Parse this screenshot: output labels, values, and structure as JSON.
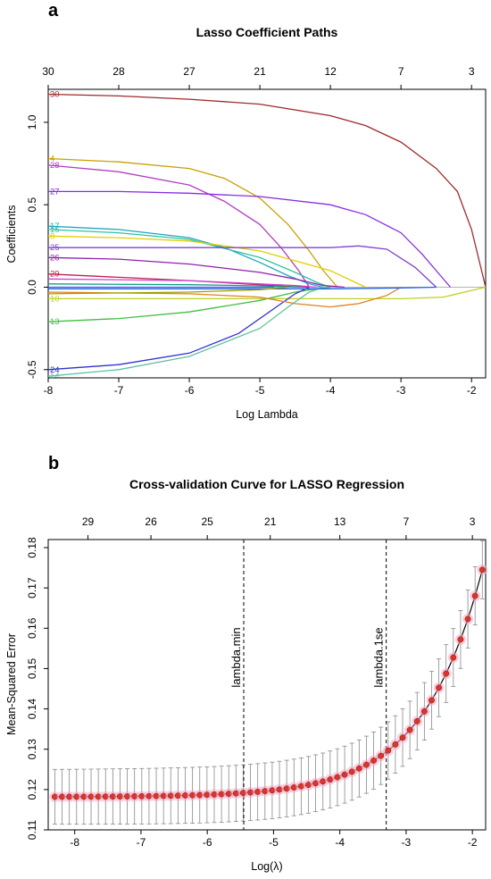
{
  "chart_data": [
    {
      "panel": "a",
      "type": "line",
      "title": "Lasso Coefficient Paths",
      "xlabel": "Log Lambda",
      "ylabel": "Coefficients",
      "xlim": [
        -8,
        -1.8
      ],
      "ylim": [
        -0.55,
        1.2
      ],
      "x_ticks": [
        -8,
        -7,
        -6,
        -5,
        -4,
        -3,
        -2
      ],
      "y_ticks": [
        -0.5,
        0.0,
        0.5,
        1.0
      ],
      "top_ticks": [
        {
          "x": -8,
          "label": "30"
        },
        {
          "x": -7,
          "label": "28"
        },
        {
          "x": -6,
          "label": "27"
        },
        {
          "x": -5,
          "label": "21"
        },
        {
          "x": -4,
          "label": "12"
        },
        {
          "x": -3,
          "label": "7"
        },
        {
          "x": -2,
          "label": "3"
        }
      ],
      "series": [
        {
          "label": "30",
          "color": "#9e2a2b",
          "x": [
            -8,
            -7,
            -6,
            -5,
            -4,
            -3.5,
            -3,
            -2.5,
            -2.2,
            -2,
            -1.8
          ],
          "y": [
            1.17,
            1.16,
            1.14,
            1.11,
            1.04,
            0.98,
            0.88,
            0.72,
            0.58,
            0.35,
            0.0
          ]
        },
        {
          "label": "4",
          "color": "#c8a000",
          "x": [
            -8,
            -7,
            -6,
            -5.5,
            -5,
            -4.6,
            -4.3,
            -4.1,
            -3.9
          ],
          "y": [
            0.78,
            0.76,
            0.72,
            0.66,
            0.54,
            0.38,
            0.22,
            0.1,
            0.0
          ]
        },
        {
          "label": "28",
          "color": "#b03fc0",
          "x": [
            -8,
            -7,
            -6,
            -5.5,
            -5,
            -4.7,
            -4.45,
            -4.3
          ],
          "y": [
            0.74,
            0.7,
            0.62,
            0.52,
            0.38,
            0.24,
            0.1,
            0.0
          ]
        },
        {
          "label": "27",
          "color": "#8a2be2",
          "x": [
            -8,
            -7,
            -6,
            -5,
            -4,
            -3.5,
            -3,
            -2.7,
            -2.5,
            -2.3
          ],
          "y": [
            0.58,
            0.58,
            0.57,
            0.55,
            0.5,
            0.44,
            0.33,
            0.2,
            0.1,
            0.0
          ]
        },
        {
          "label": "17",
          "color": "#1aa8c0",
          "x": [
            -8,
            -7,
            -6,
            -5.5,
            -5,
            -4.6,
            -4.3,
            -4.1
          ],
          "y": [
            0.37,
            0.35,
            0.3,
            0.24,
            0.15,
            0.07,
            0.02,
            0.0
          ]
        },
        {
          "label": "16",
          "color": "#2ec4a0",
          "x": [
            -8,
            -7,
            -6,
            -5,
            -4.5,
            -4.2,
            -4.0
          ],
          "y": [
            0.35,
            0.33,
            0.29,
            0.18,
            0.09,
            0.03,
            0.0
          ]
        },
        {
          "label": "8",
          "color": "#e0d000",
          "x": [
            -8,
            -7,
            -6,
            -5,
            -4,
            -3.5
          ],
          "y": [
            0.31,
            0.3,
            0.28,
            0.22,
            0.1,
            0.0
          ]
        },
        {
          "label": "25",
          "color": "#8040d0",
          "x": [
            -8,
            -7,
            -6,
            -5,
            -4,
            -3.6,
            -3.2,
            -2.8,
            -2.5
          ],
          "y": [
            0.24,
            0.24,
            0.24,
            0.24,
            0.24,
            0.25,
            0.23,
            0.12,
            0.0
          ]
        },
        {
          "label": "26",
          "color": "#9020b0",
          "x": [
            -8,
            -7,
            -6,
            -5,
            -4.5,
            -4.1,
            -3.8
          ],
          "y": [
            0.18,
            0.17,
            0.14,
            0.09,
            0.05,
            0.01,
            0.0
          ]
        },
        {
          "label": "29",
          "color": "#c02050",
          "x": [
            -8,
            -7,
            -6,
            -5.2,
            -4.6,
            -4.3
          ],
          "y": [
            0.08,
            0.06,
            0.04,
            0.02,
            0.005,
            0.0
          ]
        },
        {
          "label": "10",
          "color": "#c0d020",
          "x": [
            -8,
            -7,
            -6,
            -5,
            -4,
            -3,
            -2.4,
            -2.1,
            -1.8
          ],
          "y": [
            -0.07,
            -0.07,
            -0.07,
            -0.07,
            -0.07,
            -0.07,
            -0.06,
            -0.03,
            0.0
          ]
        },
        {
          "label": "13",
          "color": "#40c040",
          "x": [
            -8,
            -7,
            -6,
            -5,
            -4.5,
            -4.2,
            -4.0
          ],
          "y": [
            -0.21,
            -0.19,
            -0.15,
            -0.08,
            -0.03,
            -0.01,
            0.0
          ]
        },
        {
          "label": "24",
          "color": "#3030d0",
          "x": [
            -8,
            -7,
            -6,
            -5.3,
            -4.8,
            -4.5,
            -4.3
          ],
          "y": [
            -0.5,
            -0.47,
            -0.4,
            -0.28,
            -0.13,
            -0.04,
            0.0
          ]
        },
        {
          "label": "14",
          "color": "#60c0a0",
          "x": [
            -8,
            -7,
            -6,
            -5,
            -4.6,
            -4.3,
            -4.1
          ],
          "y": [
            -0.54,
            -0.5,
            -0.42,
            -0.25,
            -0.12,
            -0.03,
            0.0
          ]
        },
        {
          "label": "",
          "color": "#e08020",
          "x": [
            -8,
            -6,
            -5,
            -4.5,
            -4,
            -3.6,
            -3.2,
            -3.0
          ],
          "y": [
            -0.03,
            -0.04,
            -0.06,
            -0.1,
            -0.12,
            -0.1,
            -0.05,
            0.0
          ]
        },
        {
          "label": "",
          "color": "#d040d0",
          "x": [
            -8,
            -6,
            -5,
            -4.5,
            -4.2
          ],
          "y": [
            0.05,
            0.04,
            0.02,
            0.01,
            0.0
          ]
        },
        {
          "label": "",
          "color": "#2060e0",
          "x": [
            -8,
            -6,
            -4,
            -3,
            -2.5
          ],
          "y": [
            -0.01,
            -0.01,
            -0.01,
            -0.005,
            0.0
          ]
        },
        {
          "label": "",
          "color": "#10a080",
          "x": [
            -8,
            -6,
            -5,
            -4.4
          ],
          "y": [
            0.02,
            0.015,
            0.008,
            0.0
          ]
        },
        {
          "label": "",
          "color": "#a0a000",
          "x": [
            -8,
            -6,
            -5,
            -4.6
          ],
          "y": [
            -0.04,
            -0.03,
            -0.015,
            0.0
          ]
        },
        {
          "label": "",
          "color": "#5050f0",
          "x": [
            -8,
            -6,
            -5,
            -4.8
          ],
          "y": [
            0.0,
            0.0,
            0.0,
            0.0
          ]
        }
      ],
      "cluster_label_color": "#1a20d0"
    },
    {
      "panel": "b",
      "type": "scatter",
      "title": "Cross-validation Curve for LASSO Regression",
      "xlabel": "Log(λ)",
      "ylabel": "Mean-Squared Error",
      "xlim": [
        -8.4,
        -1.8
      ],
      "ylim": [
        0.11,
        0.182
      ],
      "x_ticks": [
        -8,
        -7,
        -6,
        -5,
        -4,
        -3,
        -2
      ],
      "y_ticks": [
        0.11,
        0.12,
        0.13,
        0.14,
        0.15,
        0.16,
        0.17,
        0.18
      ],
      "top_ticks": [
        {
          "x": -7.8,
          "label": "29"
        },
        {
          "x": -6.85,
          "label": "26"
        },
        {
          "x": -6.0,
          "label": "25"
        },
        {
          "x": -5.05,
          "label": "21"
        },
        {
          "x": -4.0,
          "label": "13"
        },
        {
          "x": -3.0,
          "label": "7"
        },
        {
          "x": -2.0,
          "label": "3"
        }
      ],
      "lambda_min": -5.45,
      "lambda_1se": -3.3,
      "vline_labels": [
        "lambda.min",
        "lambda.1se"
      ],
      "curve": {
        "x_start": -8.3,
        "x_end": -1.85,
        "n_points": 60,
        "y_floor": 0.1182,
        "y_at_end": 0.1745,
        "err_base": 0.0068,
        "err_end": 0.0072
      },
      "point_color": "#d9352b",
      "halo_color": "#f7a6c4"
    }
  ]
}
